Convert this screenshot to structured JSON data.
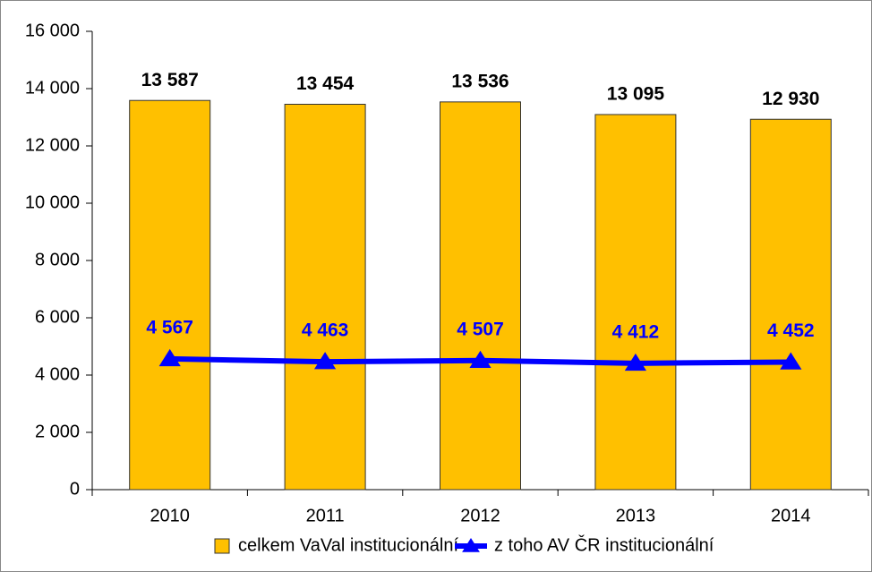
{
  "chart_data": {
    "type": "bar",
    "categories": [
      "2010",
      "2011",
      "2012",
      "2013",
      "2014"
    ],
    "series": [
      {
        "name": "celkem VaVal institucionální",
        "type": "bar",
        "color": "#FFC000",
        "values": [
          13587,
          13454,
          13536,
          13095,
          12930
        ],
        "value_labels": [
          "13 587",
          "13 454",
          "13 536",
          "13 095",
          "12 930"
        ],
        "label_color": "#000000"
      },
      {
        "name": "z toho AV ČR institucionální",
        "type": "line",
        "color": "#0000FF",
        "values": [
          4567,
          4463,
          4507,
          4412,
          4452
        ],
        "value_labels": [
          "4 567",
          "4 463",
          "4 507",
          "4 412",
          "4 452"
        ],
        "label_color": "#0000FF"
      }
    ],
    "ylim": [
      0,
      16000
    ],
    "yticks": [
      0,
      {
        "value": 2000,
        "label": "2 000"
      },
      {
        "value": 4000,
        "label": "4 000"
      },
      {
        "value": 6000,
        "label": "6 000"
      },
      {
        "value": 8000,
        "label": "8 000"
      },
      {
        "value": 10000,
        "label": "10 000"
      },
      {
        "value": 12000,
        "label": "12 000"
      },
      {
        "value": 14000,
        "label": "14 000"
      },
      {
        "value": 16000,
        "label": "16 000"
      }
    ],
    "grid": false,
    "legend": "bottom"
  }
}
